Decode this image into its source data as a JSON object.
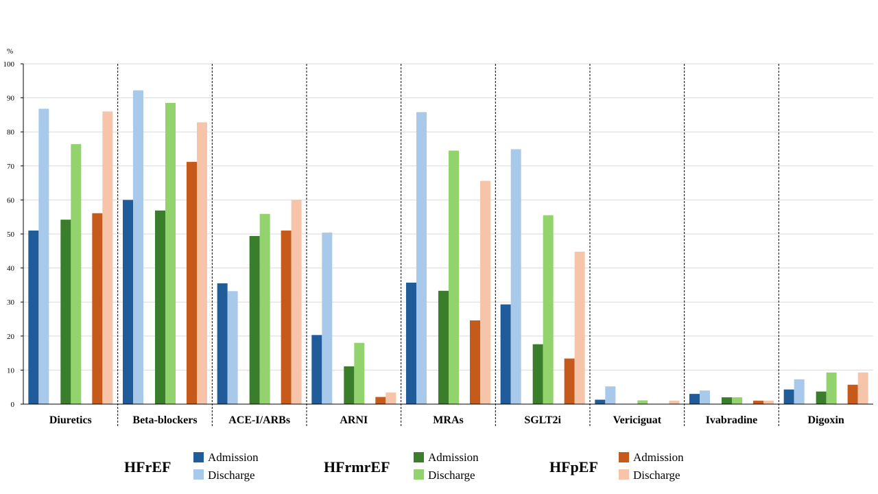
{
  "chart_data": {
    "type": "bar",
    "ylabel": "%",
    "ylim": [
      0,
      100
    ],
    "yticks": [
      0,
      10,
      20,
      30,
      40,
      50,
      60,
      70,
      80,
      90,
      100
    ],
    "grid": true,
    "categories": [
      "Diuretics",
      "Beta-blockers",
      "ACE-I/ARBs",
      "ARNI",
      "MRAs",
      "SGLT2i",
      "Vericiguat",
      "Ivabradine",
      "Digoxin"
    ],
    "series": [
      {
        "group": "HFrEF",
        "name": "Admission",
        "color": "#1f5c99",
        "values": [
          51,
          60,
          35.5,
          20.3,
          35.7,
          29.3,
          1.3,
          3,
          4.3
        ]
      },
      {
        "group": "HFrEF",
        "name": "Discharge",
        "color": "#a9c9ea",
        "values": [
          86.8,
          92.2,
          33.2,
          50.4,
          85.8,
          74.9,
          5.2,
          4,
          7.3
        ]
      },
      {
        "group": "HFrmrEF",
        "name": "Admission",
        "color": "#3a7d2a",
        "values": [
          54.2,
          56.9,
          49.4,
          11.1,
          33.3,
          17.6,
          0,
          2,
          3.7
        ]
      },
      {
        "group": "HFrmrEF",
        "name": "Discharge",
        "color": "#92d36e",
        "values": [
          76.4,
          88.5,
          55.9,
          18,
          74.5,
          55.5,
          1.1,
          2,
          9.3
        ]
      },
      {
        "group": "HFpEF",
        "name": "Admission",
        "color": "#c55a1a",
        "values": [
          56.1,
          71.2,
          51,
          2.1,
          24.6,
          13.4,
          0,
          1,
          5.7
        ]
      },
      {
        "group": "HFpEF",
        "name": "Discharge",
        "color": "#f6c4a8",
        "values": [
          86,
          82.8,
          60,
          3.4,
          65.6,
          44.8,
          1,
          1,
          9.3
        ]
      }
    ]
  },
  "legend": {
    "groups": [
      {
        "name": "HFrEF",
        "items": [
          {
            "label": "Admission",
            "color": "#1f5c99"
          },
          {
            "label": "Discharge",
            "color": "#a9c9ea"
          }
        ]
      },
      {
        "name": "HFrmrEF",
        "items": [
          {
            "label": "Admission",
            "color": "#3a7d2a"
          },
          {
            "label": "Discharge",
            "color": "#92d36e"
          }
        ]
      },
      {
        "name": "HFpEF",
        "items": [
          {
            "label": "Admission",
            "color": "#c55a1a"
          },
          {
            "label": "Discharge",
            "color": "#f6c4a8"
          }
        ]
      }
    ]
  }
}
